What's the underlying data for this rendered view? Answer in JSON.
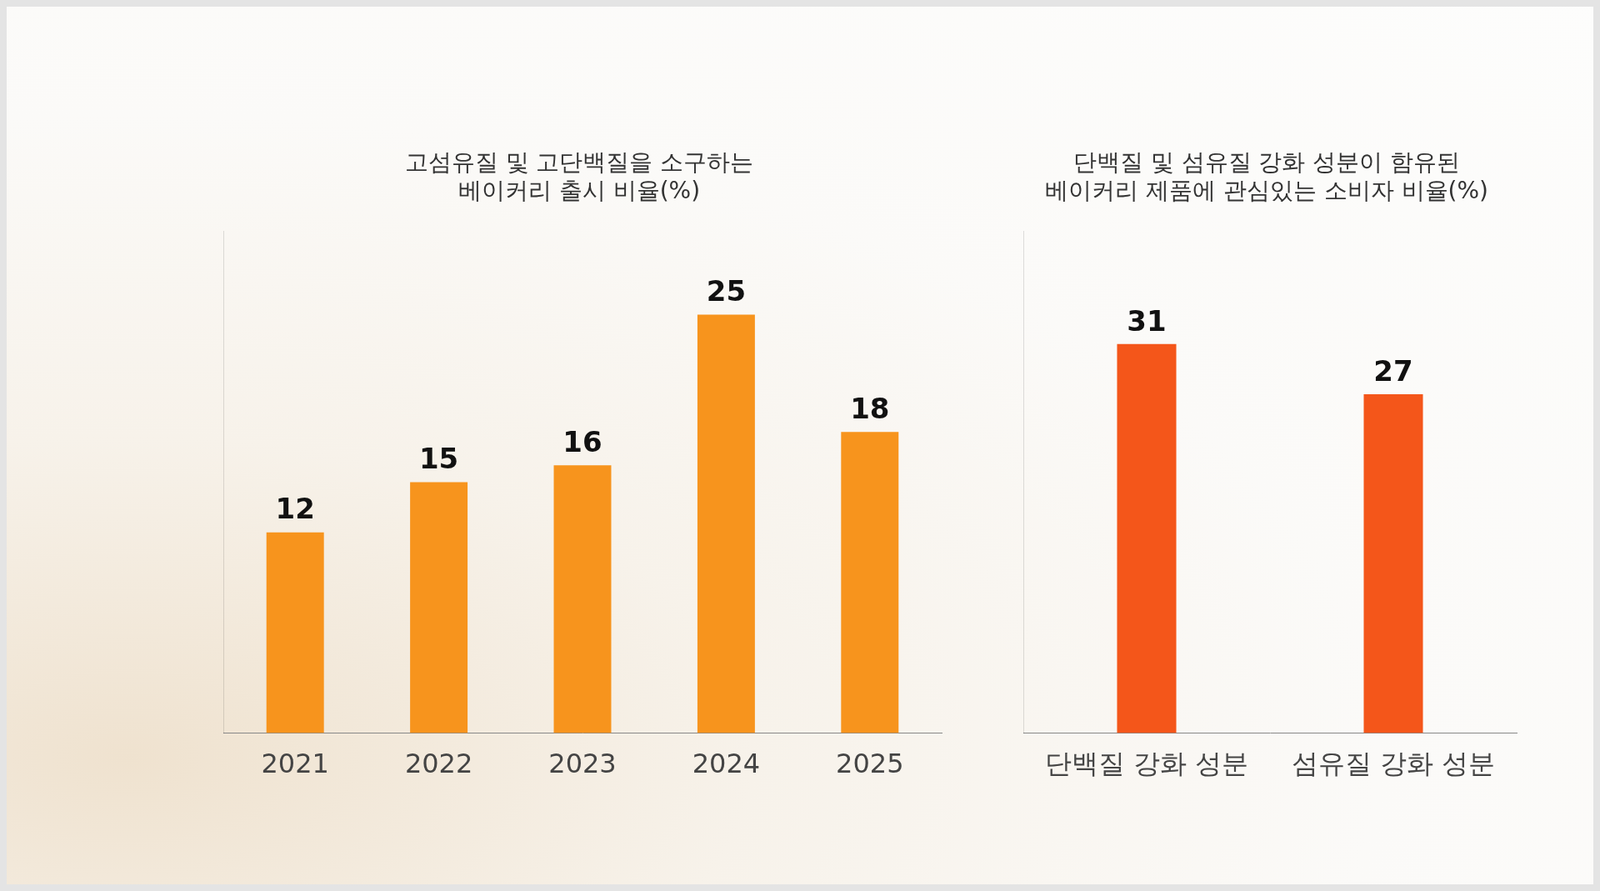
{
  "chart_data": [
    {
      "type": "bar",
      "title": [
        "고섬유질 및 고단백질을 소구하는",
        "베이커리 출시 비율(%)"
      ],
      "categories": [
        "2021",
        "2022",
        "2023",
        "2024",
        "2025"
      ],
      "values": [
        12,
        15,
        16,
        25,
        18
      ],
      "color": "#f7941d",
      "ylim": [
        0,
        30
      ],
      "grid": false,
      "data_labels": true,
      "tick_labels": "x"
    },
    {
      "type": "bar",
      "title": [
        "단백질 및 섬유질 강화 성분이 함유된",
        "베이커리 제품에 관심있는 소비자 비율(%)"
      ],
      "categories": [
        "단백질 강화 성분",
        "섬유질 강화 성분"
      ],
      "values": [
        31,
        27
      ],
      "color": "#f4561a",
      "ylim": [
        0,
        40
      ],
      "grid": false,
      "data_labels": true,
      "tick_labels": "x"
    }
  ]
}
